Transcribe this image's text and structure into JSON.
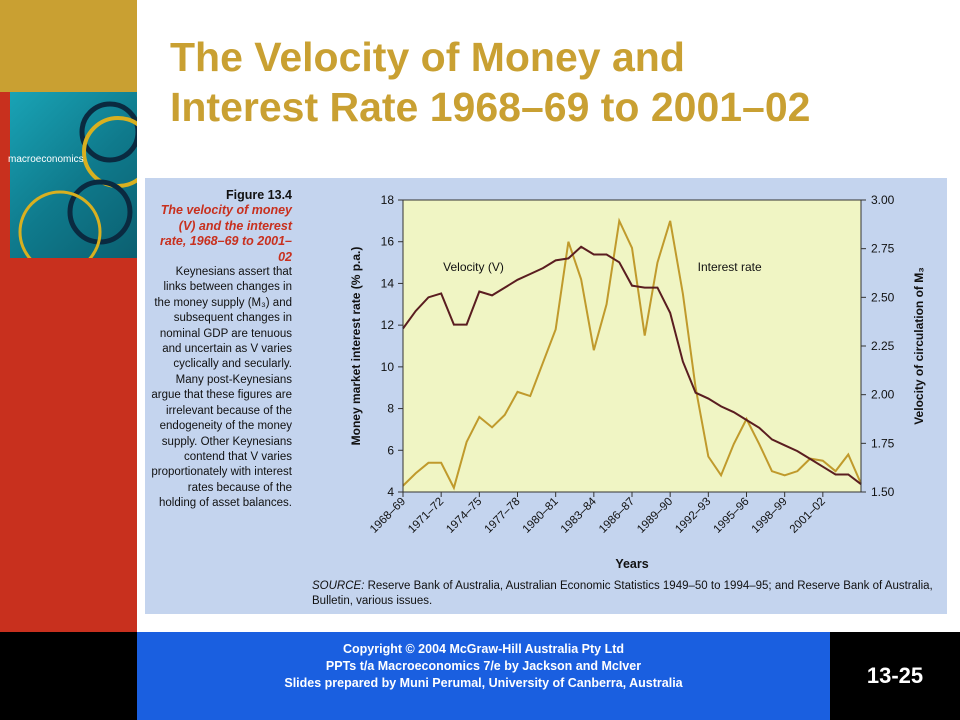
{
  "title_line1": "The Velocity of Money and",
  "title_line2": "Interest Rate 1968–69 to 2001–02",
  "book_cover_text": "macroeconomics",
  "caption": {
    "figure_number": "Figure 13.4",
    "figure_title": "The velocity of money (V) and the interest rate, 1968–69 to 2001–02",
    "body": "Keynesians assert that links between changes in the money supply (M₃) and subsequent changes in nominal GDP are tenuous and uncertain as V varies cyclically and secularly. Many post-Keynesians argue that these figures are irrelevant because of the endogeneity of the money supply. Other Keynesians contend that V varies proportionately with interest rates because of the holding of asset balances."
  },
  "chart_data": {
    "type": "line",
    "xlabel": "Years",
    "ylabel_left": "Money market interest rate (% p.a.)",
    "ylabel_right": "Velocity of circulation of M₃",
    "y_left_lim": [
      4,
      18
    ],
    "y_left_ticks": [
      "4",
      "6",
      "8",
      "10",
      "12",
      "14",
      "16",
      "18"
    ],
    "y_right_lim": [
      1.5,
      3.0
    ],
    "y_right_ticks": [
      "1.50",
      "1.75",
      "2.00",
      "2.25",
      "2.50",
      "2.75",
      "3.00"
    ],
    "x_tick_labels": [
      "1968–69",
      "1971–72",
      "1974–75",
      "1977–78",
      "1980–81",
      "1983–84",
      "1986–87",
      "1989–90",
      "1992–93",
      "1995–96",
      "1998–99",
      "2001–02"
    ],
    "grid": false,
    "plot_background": "#f0f5c4",
    "series": [
      {
        "name": "Velocity (V)",
        "axis": "right",
        "color": "#5a1d20",
        "values": [
          2.34,
          2.43,
          2.5,
          2.52,
          2.36,
          2.36,
          2.53,
          2.51,
          2.55,
          2.59,
          2.62,
          2.65,
          2.69,
          2.7,
          2.76,
          2.72,
          2.72,
          2.68,
          2.56,
          2.55,
          2.55,
          2.42,
          2.17,
          2.01,
          1.98,
          1.94,
          1.91,
          1.87,
          1.83,
          1.77,
          1.74,
          1.71,
          1.67,
          1.63,
          1.59,
          1.59,
          1.54
        ]
      },
      {
        "name": "Interest rate",
        "axis": "left",
        "color": "#c09a2c",
        "values": [
          4.3,
          4.9,
          5.4,
          5.4,
          4.2,
          6.4,
          7.6,
          7.1,
          7.7,
          8.8,
          8.6,
          10.2,
          11.8,
          16.0,
          14.2,
          10.8,
          13.0,
          17.0,
          15.7,
          11.5,
          15.0,
          17.0,
          13.5,
          9.0,
          5.7,
          4.8,
          6.3,
          7.5,
          6.3,
          5.0,
          4.8,
          5.0,
          5.6,
          5.5,
          5.0,
          5.8,
          4.4
        ]
      }
    ]
  },
  "source": {
    "label": "SOURCE:",
    "text": "Reserve Bank of Australia, Australian Economic Statistics 1949–50 to 1994–95; and Reserve Bank of Australia, Bulletin, various issues."
  },
  "footer": {
    "line1": "Copyright © 2004 McGraw-Hill Australia Pty Ltd",
    "line2": "PPTs t/a Macroeconomics 7/e by Jackson and McIver",
    "line3": "Slides prepared by Muni Perumal, University of Canberra, Australia",
    "page_number": "13-25"
  }
}
